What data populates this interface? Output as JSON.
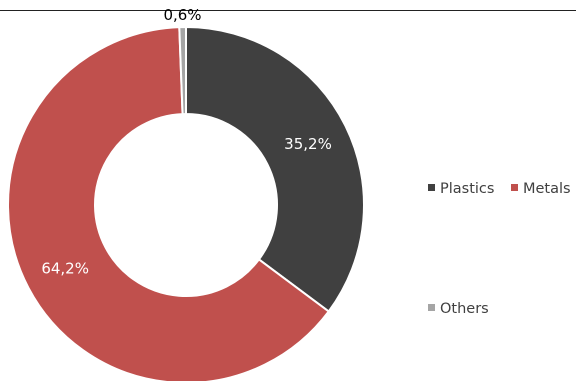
{
  "chart_data": {
    "type": "pie",
    "donut": true,
    "series": [
      {
        "name": "Plastics",
        "value": 35.2,
        "label": "35,2%",
        "color": "#404040",
        "label_color": "#ffffff"
      },
      {
        "name": "Metals",
        "value": 64.2,
        "label": "64,2%",
        "color": "#c0504d",
        "label_color": "#ffffff"
      },
      {
        "name": "Others",
        "value": 0.6,
        "label": "0,6%",
        "color": "#a5a5a5",
        "label_color": "#000000"
      }
    ],
    "start_angle_deg": 0,
    "direction": "clockwise",
    "legend_position": "right",
    "slice_border_color": "#ffffff"
  }
}
